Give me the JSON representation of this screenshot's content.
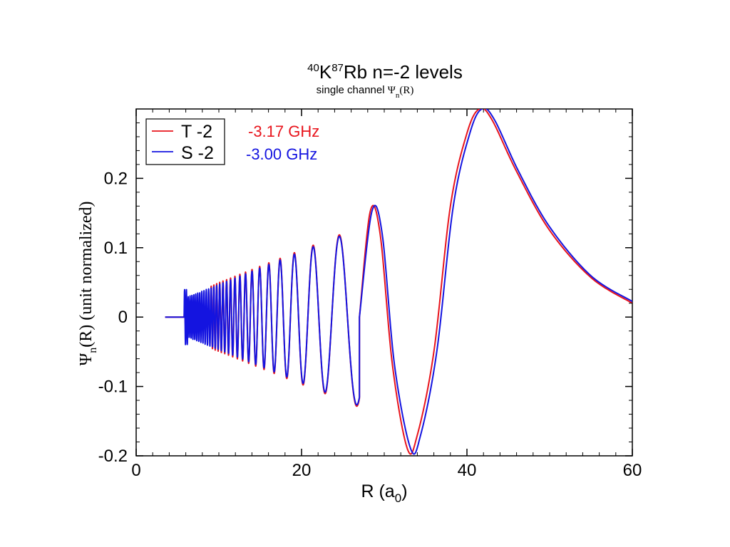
{
  "chart_data": {
    "type": "line",
    "title": {
      "iso1": "40",
      "el1": "K",
      "iso2": "87",
      "el2": "Rb",
      "rest": " n=-2 levels"
    },
    "subtitle": {
      "prefix": "single channel ",
      "psi": "Ψ",
      "sub": "n",
      "suffix": "(R)"
    },
    "xlabel": {
      "main": "R (a",
      "sub": "0",
      "end": ")"
    },
    "ylabel": {
      "psi": "Ψ",
      "sub": "n",
      "rest": "(R) (unit normalized)"
    },
    "xlim": [
      0,
      60
    ],
    "ylim": [
      -0.2,
      0.3
    ],
    "xticks": [
      "0",
      "20",
      "40",
      "60"
    ],
    "yticks": [
      "-0.2",
      "-0.1",
      "0",
      "0.1",
      "0.2"
    ],
    "grid": false,
    "legend_position": "top-left",
    "series": [
      {
        "name": "T -2",
        "color": "#e8141c",
        "energy": "-3.17 GHz",
        "x": [
          3.5,
          5.8,
          9.0,
          12,
          15,
          17,
          19,
          21,
          23.5,
          26,
          28.3,
          31,
          32.8,
          35,
          38,
          41,
          43,
          46,
          50,
          55,
          60
        ],
        "y": [
          0,
          0,
          0,
          0,
          0,
          0,
          0,
          0,
          0,
          0,
          0.15,
          0,
          -0.19,
          -0.15,
          0.16,
          0.3,
          0.28,
          0.2,
          0.12,
          0.055,
          0.02
        ]
      },
      {
        "name": "S -2",
        "color": "#1414e0",
        "energy": "-3.00 GHz",
        "x": [
          3.5,
          5.8,
          9.0,
          12,
          15,
          17,
          19,
          21,
          23.5,
          26,
          28.5,
          31,
          33.2,
          35,
          38,
          41.3,
          43.3,
          46,
          50,
          55,
          60
        ],
        "y": [
          0,
          0,
          0,
          0,
          0,
          0,
          0,
          0,
          0,
          0,
          0.15,
          0,
          -0.19,
          -0.155,
          0.15,
          0.3,
          0.285,
          0.21,
          0.125,
          0.06,
          0.022
        ]
      }
    ]
  }
}
